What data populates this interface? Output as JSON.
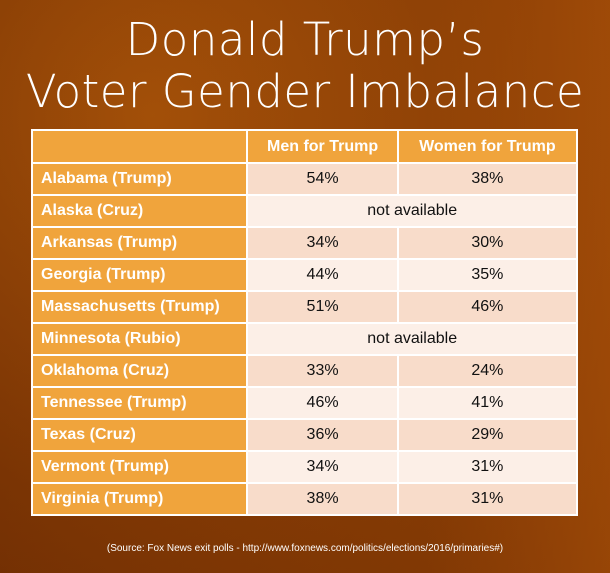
{
  "title_line1": "Donald Trump’s",
  "title_line2": "Voter Gender Imbalance",
  "source": "(Source: Fox News exit polls - http://www.foxnews.com/politics/elections/2016/primaries#)",
  "chart_data": {
    "type": "table",
    "columns": [
      "",
      "Men for Trump",
      "Women for Trump"
    ],
    "rows": [
      {
        "state": "Alabama (Trump)",
        "men": "54%",
        "women": "38%"
      },
      {
        "state": "Alaska (Cruz)",
        "note": "not available"
      },
      {
        "state": "Arkansas (Trump)",
        "men": "34%",
        "women": "30%"
      },
      {
        "state": "Georgia (Trump)",
        "men": "44%",
        "women": "35%"
      },
      {
        "state": "Massachusetts (Trump)",
        "men": "51%",
        "women": "46%"
      },
      {
        "state": "Minnesota (Rubio)",
        "note": "not available"
      },
      {
        "state": "Oklahoma (Cruz)",
        "men": "33%",
        "women": "24%"
      },
      {
        "state": "Tennessee (Trump)",
        "men": "46%",
        "women": "41%"
      },
      {
        "state": "Texas (Cruz)",
        "men": "36%",
        "women": "29%"
      },
      {
        "state": "Vermont (Trump)",
        "men": "34%",
        "women": "31%"
      },
      {
        "state": "Virginia (Trump)",
        "men": "38%",
        "women": "31%"
      }
    ]
  }
}
